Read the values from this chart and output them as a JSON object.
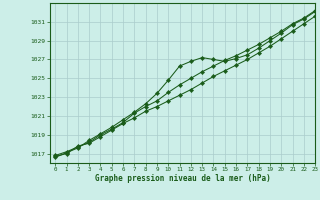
{
  "title": "Graphe pression niveau de la mer (hPa)",
  "background_color": "#cceee8",
  "plot_bg_color": "#cceee8",
  "grid_color": "#aacccc",
  "line_color": "#1a5c1a",
  "marker_color": "#1a5c1a",
  "xlim": [
    -0.5,
    23
  ],
  "ylim": [
    1016.0,
    1033.0
  ],
  "yticks": [
    1017,
    1019,
    1021,
    1023,
    1025,
    1027,
    1029,
    1031
  ],
  "xticks": [
    0,
    1,
    2,
    3,
    4,
    5,
    6,
    7,
    8,
    9,
    10,
    11,
    12,
    13,
    14,
    15,
    16,
    17,
    18,
    19,
    20,
    21,
    22,
    23
  ],
  "series": [
    [
      1016.8,
      1017.2,
      1017.7,
      1018.2,
      1019.0,
      1019.6,
      1020.3,
      1021.3,
      1022.0,
      1022.6,
      1023.5,
      1024.3,
      1025.0,
      1025.7,
      1026.3,
      1026.9,
      1027.4,
      1028.0,
      1028.6,
      1029.3,
      1030.0,
      1030.8,
      1031.4,
      1032.2
    ],
    [
      1016.6,
      1017.1,
      1017.6,
      1018.4,
      1019.1,
      1019.8,
      1020.6,
      1021.4,
      1022.3,
      1023.4,
      1024.8,
      1026.3,
      1026.8,
      1027.2,
      1027.0,
      1026.8,
      1027.1,
      1027.5,
      1028.2,
      1029.0,
      1029.8,
      1030.7,
      1031.3,
      1032.1
    ],
    [
      1016.7,
      1017.0,
      1017.8,
      1018.1,
      1018.8,
      1019.5,
      1020.2,
      1020.8,
      1021.5,
      1022.0,
      1022.6,
      1023.2,
      1023.8,
      1024.5,
      1025.2,
      1025.8,
      1026.4,
      1027.0,
      1027.7,
      1028.4,
      1029.2,
      1030.0,
      1030.8,
      1031.6
    ]
  ]
}
